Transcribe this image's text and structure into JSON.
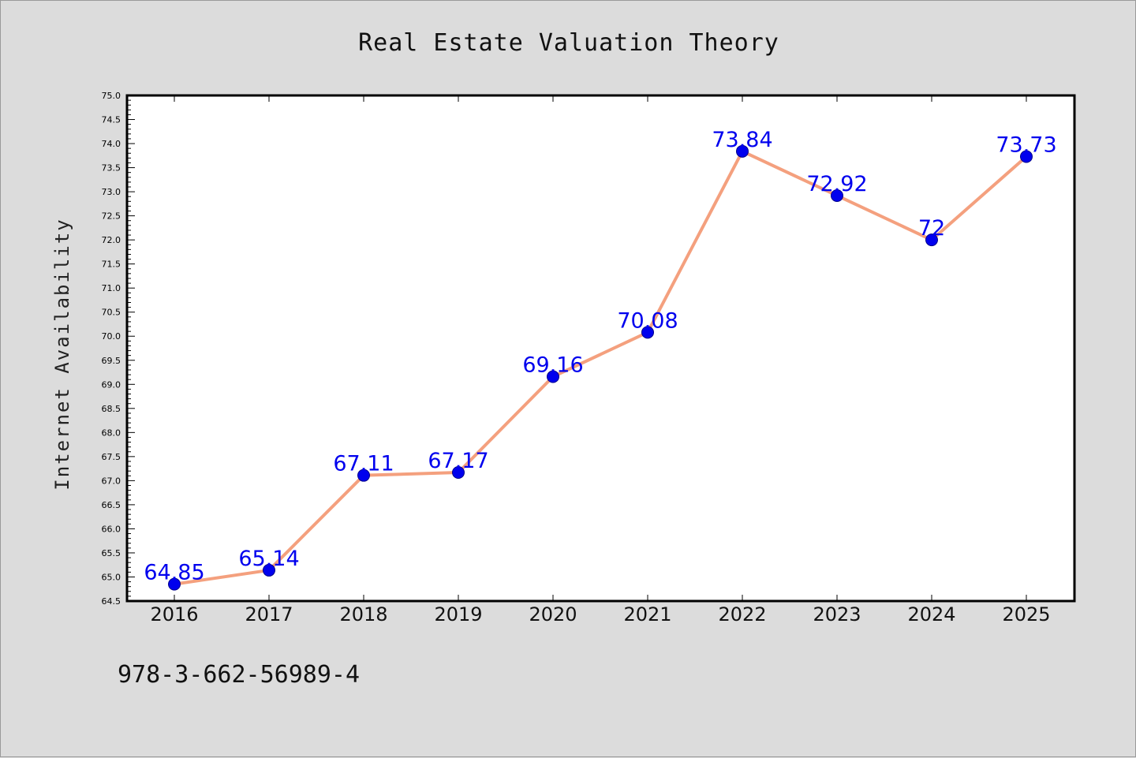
{
  "chart_data": {
    "type": "line",
    "title": "Real Estate Valuation Theory",
    "xlabel": "",
    "ylabel": "Internet Availability",
    "categories": [
      "2016",
      "2017",
      "2018",
      "2019",
      "2020",
      "2021",
      "2022",
      "2023",
      "2024",
      "2025"
    ],
    "series": [
      {
        "values": [
          64.85,
          65.14,
          67.11,
          67.17,
          69.16,
          70.08,
          73.84,
          72.92,
          72,
          73.73
        ],
        "labels": [
          "64.85",
          "65.14",
          "67.11",
          "67.17",
          "69.16",
          "70.08",
          "73.84",
          "72.92",
          "72",
          "73.73"
        ],
        "line_color": "#f4a07e",
        "marker_color": "#0000ee"
      }
    ],
    "ylim": [
      64.5,
      75.0
    ],
    "yticks": [
      "64.5",
      "65.0",
      "65.5",
      "66.0",
      "66.5",
      "67.0",
      "67.5",
      "68.0",
      "68.5",
      "69.0",
      "69.5",
      "70.0",
      "70.5",
      "71.0",
      "71.5",
      "72.0",
      "72.5",
      "73.0",
      "73.5",
      "74.0",
      "74.5",
      "75.0"
    ],
    "grid": false,
    "legend": "none",
    "footer_text": "978-3-662-56989-4",
    "colors": {
      "background": "#dcdcdc",
      "plot_background": "#ffffff",
      "data_label": "#0000ee",
      "axis": "#000000"
    }
  }
}
